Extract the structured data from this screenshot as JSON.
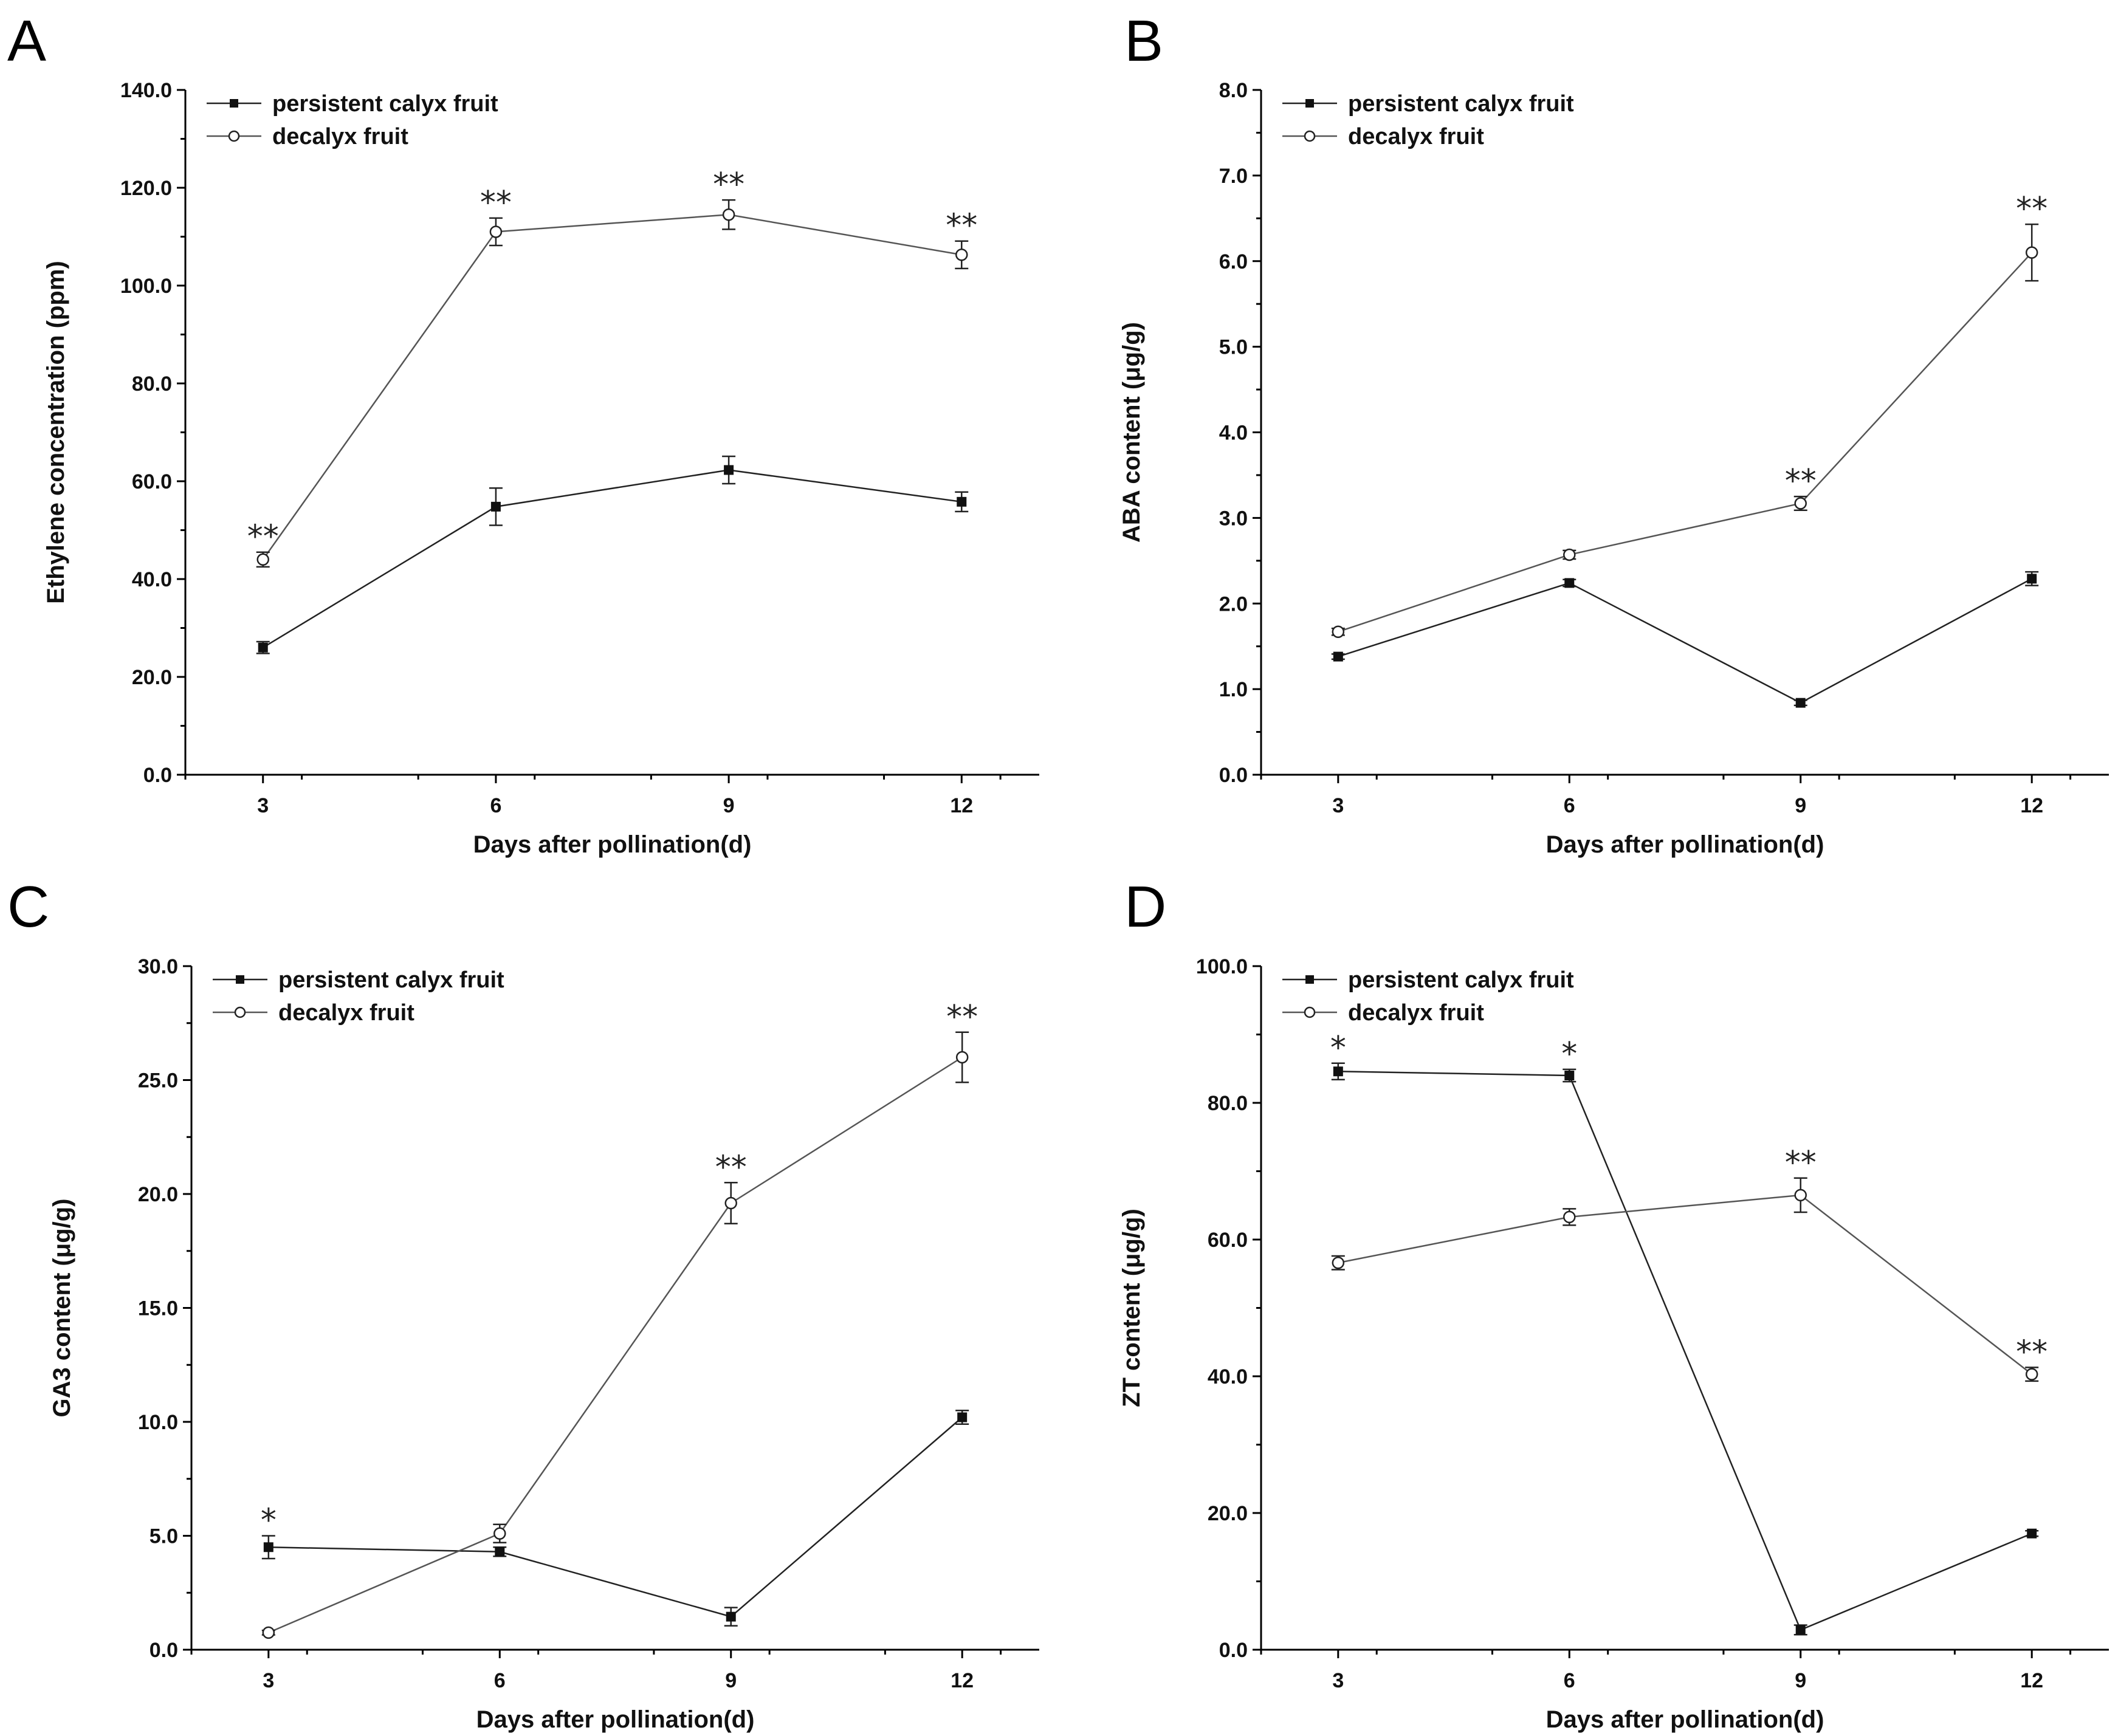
{
  "chart_data": [
    {
      "panel_label": "A",
      "type": "line",
      "xlabel": "Days after pollination(d)",
      "ylabel": "Ethylene concentration (ppm)",
      "x": [
        3,
        6,
        9,
        12
      ],
      "x_tick_labels": [
        "3",
        "6",
        "9",
        "12"
      ],
      "xlim": [
        2,
        13
      ],
      "ylim": [
        0,
        140
      ],
      "y_ticks": [
        0,
        20,
        40,
        60,
        80,
        100,
        120,
        140
      ],
      "y_tick_labels": [
        "0.0",
        "20.0",
        "40.0",
        "60.0",
        "80.0",
        "100.0",
        "120.0",
        "140.0"
      ],
      "legend": "top-left",
      "series": [
        {
          "name": "persistent calyx fruit",
          "marker": "filled-square",
          "values": [
            26.0,
            54.8,
            62.3,
            55.8
          ],
          "errors": [
            1.2,
            3.8,
            2.8,
            2.0
          ]
        },
        {
          "name": "decalyx fruit",
          "marker": "open-circle",
          "values": [
            44.0,
            111.0,
            114.5,
            106.3
          ],
          "errors": [
            1.5,
            2.8,
            3.0,
            2.8
          ]
        }
      ],
      "significance": [
        {
          "x": 3,
          "label": "**"
        },
        {
          "x": 6,
          "label": "**"
        },
        {
          "x": 9,
          "label": "**"
        },
        {
          "x": 12,
          "label": "**"
        }
      ]
    },
    {
      "panel_label": "B",
      "type": "line",
      "xlabel": "Days after pollination(d)",
      "ylabel": "ABA content (μg/g)",
      "x": [
        3,
        6,
        9,
        12
      ],
      "x_tick_labels": [
        "3",
        "6",
        "9",
        "12"
      ],
      "xlim": [
        2,
        13
      ],
      "ylim": [
        0,
        8
      ],
      "y_ticks": [
        0,
        1,
        2,
        3,
        4,
        5,
        6,
        7,
        8
      ],
      "y_tick_labels": [
        "0.0",
        "1.0",
        "2.0",
        "3.0",
        "4.0",
        "5.0",
        "6.0",
        "7.0",
        "8.0"
      ],
      "legend": "top-left",
      "series": [
        {
          "name": "persistent calyx fruit",
          "marker": "filled-square",
          "values": [
            1.38,
            2.24,
            0.84,
            2.29
          ],
          "errors": [
            0.03,
            0.04,
            0.03,
            0.08
          ]
        },
        {
          "name": "decalyx fruit",
          "marker": "open-circle",
          "values": [
            1.67,
            2.57,
            3.17,
            6.1
          ],
          "errors": [
            0.04,
            0.05,
            0.08,
            0.33
          ]
        }
      ],
      "significance": [
        {
          "x": 9,
          "label": "**"
        },
        {
          "x": 12,
          "label": "**"
        }
      ]
    },
    {
      "panel_label": "C",
      "type": "line",
      "xlabel": "Days after pollination(d)",
      "ylabel": "GA3 content (μg/g)",
      "x": [
        3,
        6,
        9,
        12
      ],
      "x_tick_labels": [
        "3",
        "6",
        "9",
        "12"
      ],
      "xlim": [
        2,
        13
      ],
      "ylim": [
        0,
        30
      ],
      "y_ticks": [
        0,
        5,
        10,
        15,
        20,
        25,
        30
      ],
      "y_tick_labels": [
        "0.0",
        "5.0",
        "10.0",
        "15.0",
        "20.0",
        "25.0",
        "30.0"
      ],
      "legend": "top-left",
      "series": [
        {
          "name": "persistent calyx fruit",
          "marker": "filled-square",
          "values": [
            4.5,
            4.3,
            1.45,
            10.2
          ],
          "errors": [
            0.5,
            0.2,
            0.4,
            0.3
          ]
        },
        {
          "name": "decalyx fruit",
          "marker": "open-circle",
          "values": [
            0.75,
            5.1,
            19.6,
            26.0
          ],
          "errors": [
            0.1,
            0.4,
            0.9,
            1.1
          ]
        }
      ],
      "significance": [
        {
          "x": 3,
          "label": "*"
        },
        {
          "x": 9,
          "label": "**"
        },
        {
          "x": 12,
          "label": "**"
        }
      ]
    },
    {
      "panel_label": "D",
      "type": "line",
      "xlabel": "Days after pollination(d)",
      "ylabel": "ZT content (μg/g)",
      "x": [
        3,
        6,
        9,
        12
      ],
      "x_tick_labels": [
        "3",
        "6",
        "9",
        "12"
      ],
      "xlim": [
        2,
        13
      ],
      "ylim": [
        0,
        100
      ],
      "y_ticks": [
        0,
        20,
        40,
        60,
        80,
        100
      ],
      "y_tick_labels": [
        "0.0",
        "20.0",
        "40.0",
        "60.0",
        "80.0",
        "100.0"
      ],
      "legend": "top-left",
      "series": [
        {
          "name": "persistent calyx fruit",
          "marker": "filled-square",
          "values": [
            84.6,
            84.0,
            2.9,
            17.0
          ],
          "errors": [
            1.2,
            0.9,
            0.7,
            0.4
          ]
        },
        {
          "name": "decalyx fruit",
          "marker": "open-circle",
          "values": [
            56.6,
            63.3,
            66.5,
            40.3
          ],
          "errors": [
            1.0,
            1.2,
            2.5,
            1.0
          ]
        }
      ],
      "significance": [
        {
          "x": 3,
          "label": "*"
        },
        {
          "x": 6,
          "label": "*"
        },
        {
          "x": 9,
          "label": "**"
        },
        {
          "x": 12,
          "label": "**"
        }
      ]
    }
  ]
}
